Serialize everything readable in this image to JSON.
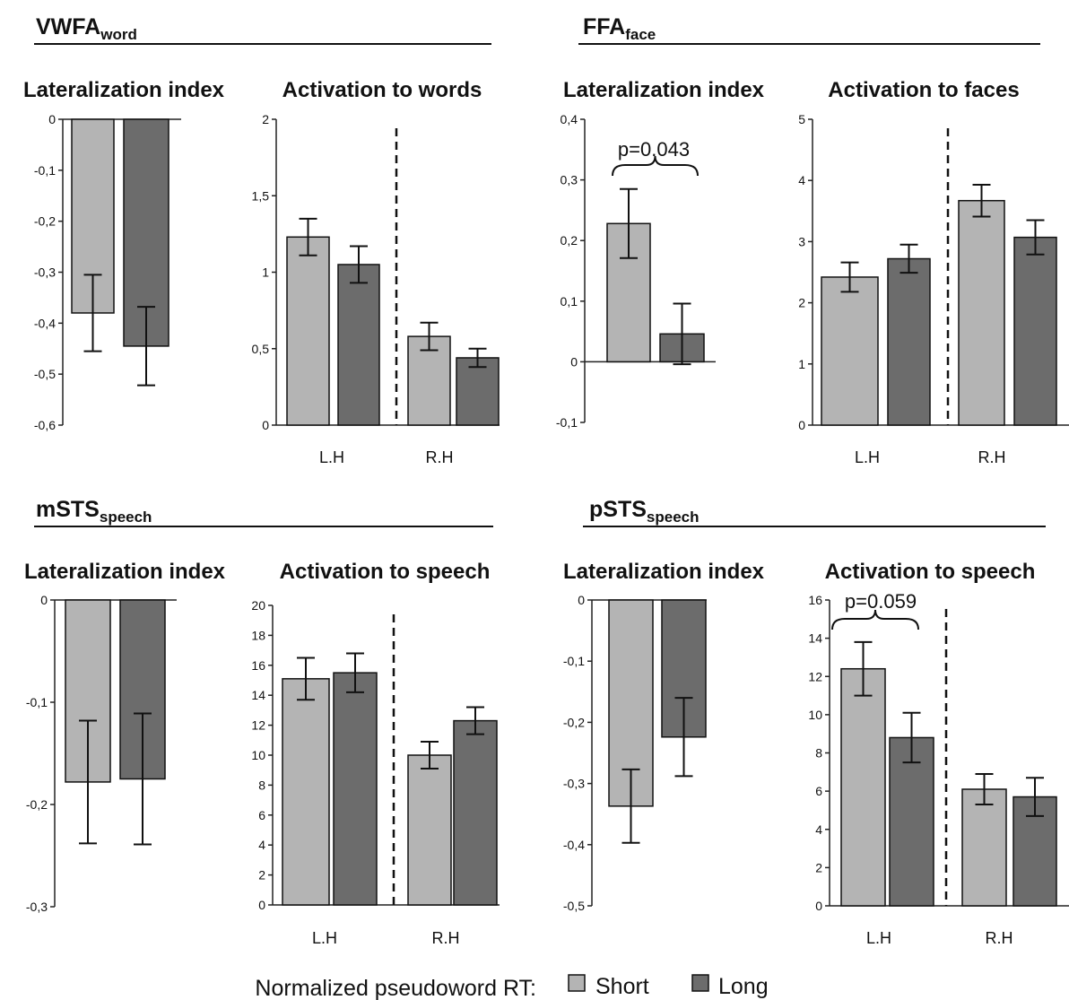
{
  "colors": {
    "short": "#b4b4b4",
    "long": "#6c6c6c"
  },
  "legend": {
    "label": "Normalized pseudoword RT:",
    "items": [
      "Short",
      "Long"
    ]
  },
  "sections": [
    {
      "name": "VWFA",
      "subscript": "word"
    },
    {
      "name": "FFA",
      "subscript": "face"
    },
    {
      "name": "mSTS",
      "subscript": "speech"
    },
    {
      "name": "pSTS",
      "subscript": "speech"
    }
  ],
  "chart_data": [
    {
      "type": "bar",
      "title": "Lateralization index",
      "ylim": [
        -0.6,
        0
      ],
      "ticks": [
        0,
        -0.1,
        -0.2,
        -0.3,
        -0.4,
        -0.5,
        -0.6
      ],
      "tick_labels": [
        "0",
        "-0,1",
        "-0,2",
        "-0,3",
        "-0,4",
        "-0,5",
        "-0,6"
      ],
      "categories": [
        ""
      ],
      "series": [
        {
          "name": "Short",
          "values": [
            -0.38
          ],
          "errors": [
            0.075
          ]
        },
        {
          "name": "Long",
          "values": [
            -0.445
          ],
          "errors": [
            0.077
          ]
        }
      ]
    },
    {
      "type": "bar",
      "title": "Activation to words",
      "ylim": [
        0,
        2
      ],
      "ticks": [
        0,
        0.5,
        1,
        1.5,
        2
      ],
      "tick_labels": [
        "0",
        "0,5",
        "1",
        "1,5",
        "2"
      ],
      "categories": [
        "L.H",
        "R.H"
      ],
      "series": [
        {
          "name": "Short",
          "values": [
            1.23,
            0.58
          ],
          "errors": [
            0.12,
            0.09
          ]
        },
        {
          "name": "Long",
          "values": [
            1.05,
            0.44
          ],
          "errors": [
            0.12,
            0.06
          ]
        }
      ]
    },
    {
      "type": "bar",
      "title": "Lateralization index",
      "ylim": [
        -0.1,
        0.4
      ],
      "ticks": [
        -0.1,
        0,
        0.1,
        0.2,
        0.3,
        0.4
      ],
      "tick_labels": [
        "-0,1",
        "0",
        "0,1",
        "0,2",
        "0,3",
        "0,4"
      ],
      "categories": [
        ""
      ],
      "series": [
        {
          "name": "Short",
          "values": [
            0.228
          ],
          "errors": [
            0.057
          ]
        },
        {
          "name": "Long",
          "values": [
            0.046
          ],
          "errors": [
            0.05
          ]
        }
      ],
      "annotation": "p=0.043"
    },
    {
      "type": "bar",
      "title": "Activation to faces",
      "ylim": [
        0,
        5
      ],
      "ticks": [
        0,
        1,
        2,
        3,
        4,
        5
      ],
      "tick_labels": [
        "0",
        "1",
        "2",
        "3",
        "4",
        "5"
      ],
      "categories": [
        "L.H",
        "R.H"
      ],
      "series": [
        {
          "name": "Short",
          "values": [
            2.42,
            3.67
          ],
          "errors": [
            0.24,
            0.26
          ]
        },
        {
          "name": "Long",
          "values": [
            2.72,
            3.07
          ],
          "errors": [
            0.23,
            0.28
          ]
        }
      ]
    },
    {
      "type": "bar",
      "title": "Lateralization index",
      "ylim": [
        -0.3,
        0
      ],
      "ticks": [
        0,
        -0.1,
        -0.2,
        -0.3
      ],
      "tick_labels": [
        "0",
        "-0,1",
        "-0,2",
        "-0,3"
      ],
      "categories": [
        ""
      ],
      "series": [
        {
          "name": "Short",
          "values": [
            -0.178
          ],
          "errors": [
            0.06
          ]
        },
        {
          "name": "Long",
          "values": [
            -0.175
          ],
          "errors": [
            0.064
          ]
        }
      ]
    },
    {
      "type": "bar",
      "title": "Activation to speech",
      "ylim": [
        0,
        20
      ],
      "ticks": [
        0,
        2,
        4,
        6,
        8,
        10,
        12,
        14,
        16,
        18,
        20
      ],
      "tick_labels": [
        "0",
        "2",
        "4",
        "6",
        "8",
        "10",
        "12",
        "14",
        "16",
        "18",
        "20"
      ],
      "categories": [
        "L.H",
        "R.H"
      ],
      "series": [
        {
          "name": "Short",
          "values": [
            15.1,
            10.0
          ],
          "errors": [
            1.4,
            0.9
          ]
        },
        {
          "name": "Long",
          "values": [
            15.5,
            12.3
          ],
          "errors": [
            1.3,
            0.9
          ]
        }
      ]
    },
    {
      "type": "bar",
      "title": "Lateralization index",
      "ylim": [
        -0.5,
        0
      ],
      "ticks": [
        0,
        -0.1,
        -0.2,
        -0.3,
        -0.4,
        -0.5
      ],
      "tick_labels": [
        "0",
        "-0,1",
        "-0,2",
        "-0,3",
        "-0,4",
        "-0,5"
      ],
      "categories": [
        ""
      ],
      "series": [
        {
          "name": "Short",
          "values": [
            -0.337
          ],
          "errors": [
            0.06
          ]
        },
        {
          "name": "Long",
          "values": [
            -0.224
          ],
          "errors": [
            0.064
          ]
        }
      ]
    },
    {
      "type": "bar",
      "title": "Activation to speech",
      "ylim": [
        0,
        16
      ],
      "ticks": [
        0,
        2,
        4,
        6,
        8,
        10,
        12,
        14,
        16
      ],
      "tick_labels": [
        "0",
        "2",
        "4",
        "6",
        "8",
        "10",
        "12",
        "14",
        "16"
      ],
      "categories": [
        "L.H",
        "R.H"
      ],
      "series": [
        {
          "name": "Short",
          "values": [
            12.4,
            6.1
          ],
          "errors": [
            1.4,
            0.8
          ]
        },
        {
          "name": "Long",
          "values": [
            8.8,
            5.7
          ],
          "errors": [
            1.3,
            1.0
          ]
        }
      ],
      "annotation": "p=0.059"
    }
  ]
}
